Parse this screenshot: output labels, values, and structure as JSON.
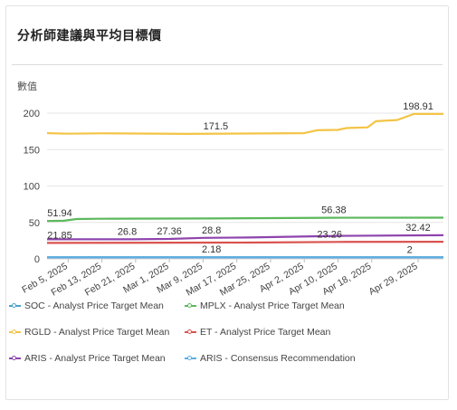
{
  "card": {
    "title": "分析師建議與平均目標價",
    "y_axis_label": "數值"
  },
  "chart_data": {
    "type": "line",
    "title": "分析師建議與平均目標價",
    "ylabel": "數值",
    "xlabel": "",
    "ylim": [
      0,
      200
    ],
    "yticks": [
      0,
      50,
      100,
      150,
      200
    ],
    "grid": true,
    "legend_position": "bottom",
    "x_range": [
      "2025-01-31",
      "2025-05-05"
    ],
    "xticks": [
      {
        "date": "2025-02-05",
        "label": "Feb 5, 2025"
      },
      {
        "date": "2025-02-13",
        "label": "Feb 13, 2025"
      },
      {
        "date": "2025-02-21",
        "label": "Feb 21, 2025"
      },
      {
        "date": "2025-03-01",
        "label": "Mar 1, 2025"
      },
      {
        "date": "2025-03-09",
        "label": "Mar 9, 2025"
      },
      {
        "date": "2025-03-17",
        "label": "Mar 17, 2025"
      },
      {
        "date": "2025-03-25",
        "label": "Mar 25, 2025"
      },
      {
        "date": "2025-04-02",
        "label": "Apr 2, 2025"
      },
      {
        "date": "2025-04-10",
        "label": "Apr 10, 2025"
      },
      {
        "date": "2025-04-18",
        "label": "Apr 18, 2025"
      },
      {
        "date": "2025-04-29",
        "label": "Apr 29, 2025"
      }
    ],
    "series": [
      {
        "name": "SOC - Analyst Price Target Mean",
        "color": "#4aa3c9",
        "points": [
          [
            "2025-01-31",
            2.2
          ],
          [
            "2025-05-05",
            2.2
          ]
        ]
      },
      {
        "name": "MPLX - Analyst Price Target Mean",
        "color": "#5cb85c",
        "points": [
          [
            "2025-01-31",
            51.94
          ],
          [
            "2025-02-04",
            52.3
          ],
          [
            "2025-02-07",
            54.6
          ],
          [
            "2025-02-12",
            55.0
          ],
          [
            "2025-03-10",
            55.4
          ],
          [
            "2025-04-08",
            56.38
          ],
          [
            "2025-05-05",
            56.5
          ]
        ]
      },
      {
        "name": "RGLD - Analyst Price Target Mean",
        "color": "#f3c445",
        "points": [
          [
            "2025-01-31",
            172.5
          ],
          [
            "2025-02-05",
            171.8
          ],
          [
            "2025-02-13",
            172.3
          ],
          [
            "2025-03-05",
            171.5
          ],
          [
            "2025-03-20",
            172.0
          ],
          [
            "2025-04-02",
            172.5
          ],
          [
            "2025-04-05",
            176.5
          ],
          [
            "2025-04-10",
            177.0
          ],
          [
            "2025-04-12",
            179.5
          ],
          [
            "2025-04-17",
            180.5
          ],
          [
            "2025-04-19",
            189.0
          ],
          [
            "2025-04-24",
            190.5
          ],
          [
            "2025-04-28",
            198.91
          ],
          [
            "2025-05-05",
            198.91
          ]
        ]
      },
      {
        "name": "ET - Analyst Price Target Mean",
        "color": "#d9534f",
        "points": [
          [
            "2025-01-31",
            21.85
          ],
          [
            "2025-03-20",
            22.3
          ],
          [
            "2025-04-10",
            23.26
          ],
          [
            "2025-05-05",
            23.5
          ]
        ]
      },
      {
        "name": "ARIS - Analyst Price Target Mean",
        "color": "#8e44ad",
        "points": [
          [
            "2025-01-31",
            26.8
          ],
          [
            "2025-02-20",
            26.8
          ],
          [
            "2025-03-01",
            27.36
          ],
          [
            "2025-03-09",
            28.8
          ],
          [
            "2025-03-20",
            29.3
          ],
          [
            "2025-04-10",
            31.5
          ],
          [
            "2025-05-05",
            32.42
          ]
        ]
      },
      {
        "name": "ARIS - Consensus Recommendation",
        "color": "#5dade2",
        "points": [
          [
            "2025-01-31",
            2.0
          ],
          [
            "2025-05-05",
            2.0
          ]
        ]
      }
    ],
    "data_labels": [
      {
        "text": "51.94",
        "date": "2025-02-03",
        "value": 51.94
      },
      {
        "text": "171.5",
        "date": "2025-03-12",
        "value": 171.5
      },
      {
        "text": "198.91",
        "date": "2025-04-29",
        "value": 198.91
      },
      {
        "text": "56.38",
        "date": "2025-04-09",
        "value": 56.38
      },
      {
        "text": "32.42",
        "date": "2025-04-29",
        "value": 32.42
      },
      {
        "text": "21.85",
        "date": "2025-02-03",
        "value": 21.85
      },
      {
        "text": "26.8",
        "date": "2025-02-19",
        "value": 26.8
      },
      {
        "text": "27.36",
        "date": "2025-03-01",
        "value": 27.36
      },
      {
        "text": "28.8",
        "date": "2025-03-11",
        "value": 28.8
      },
      {
        "text": "23.26",
        "date": "2025-04-08",
        "value": 23.26
      },
      {
        "text": "2.18",
        "date": "2025-03-11",
        "value": 2.18
      },
      {
        "text": "2",
        "date": "2025-04-27",
        "value": 2
      }
    ]
  }
}
